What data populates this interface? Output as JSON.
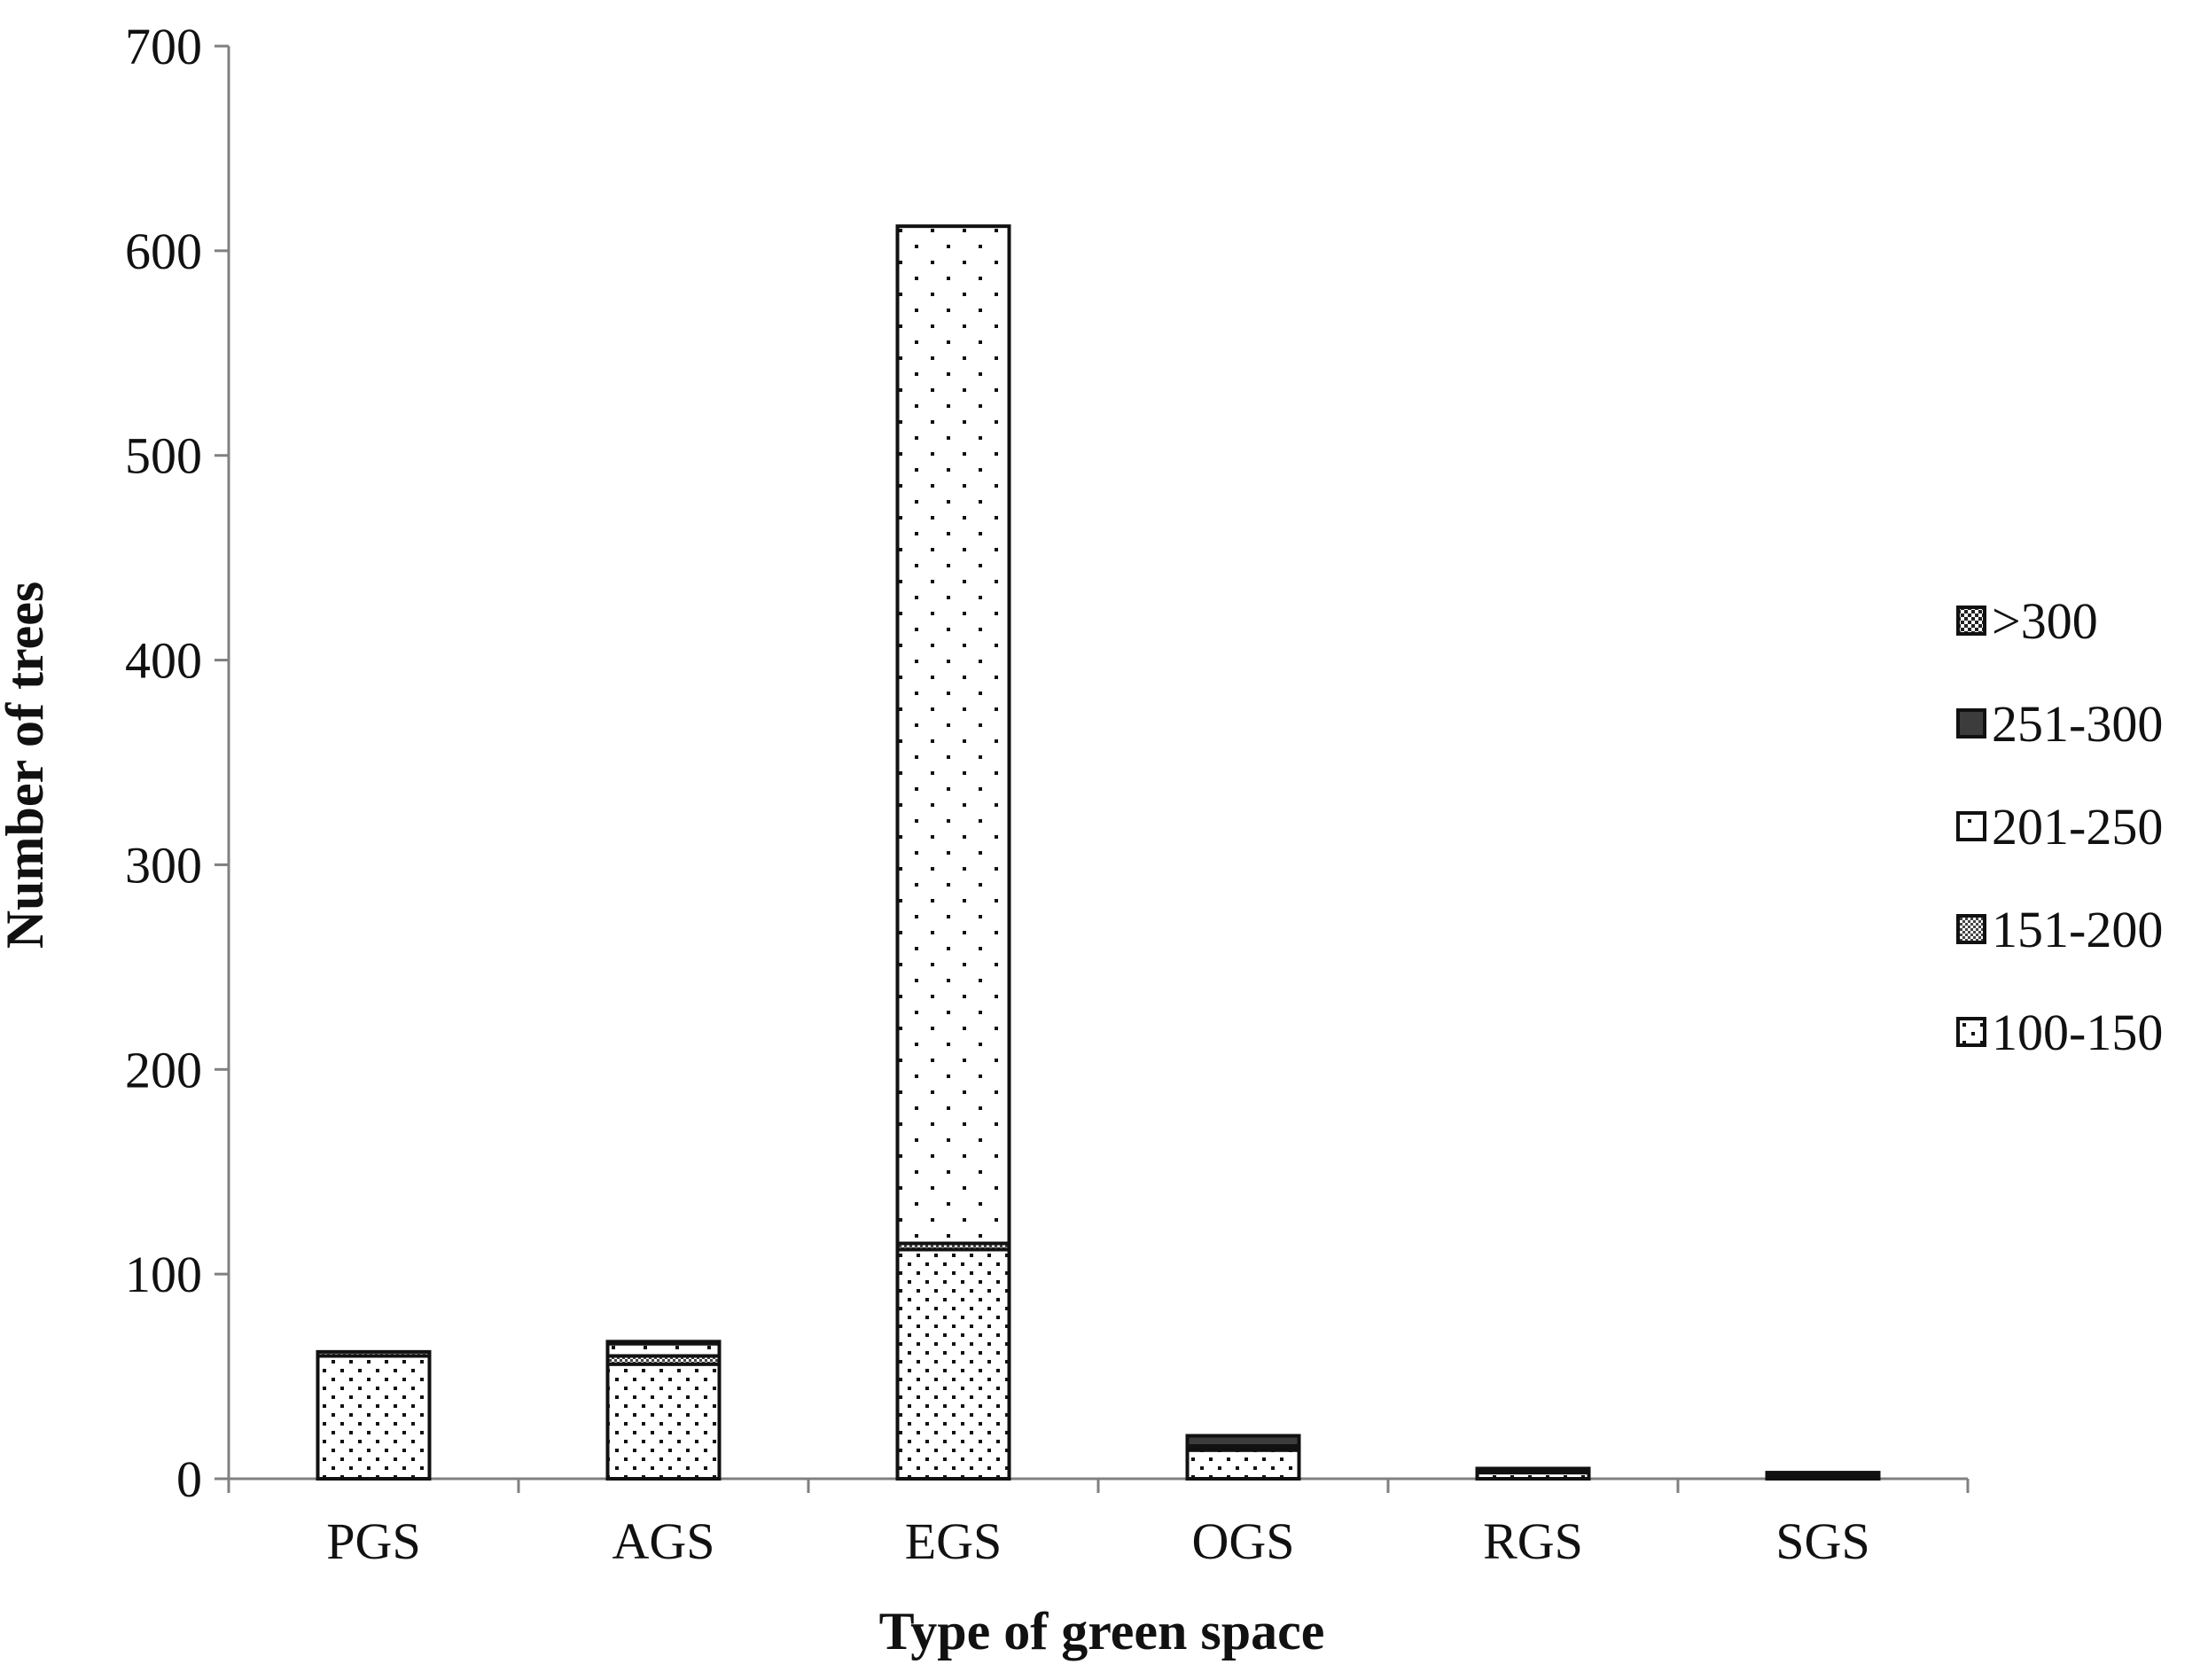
{
  "chart_data": {
    "type": "bar",
    "stacked": true,
    "title": "",
    "xlabel": "Type of green space",
    "ylabel": "Number of trees",
    "ylim": [
      0,
      700
    ],
    "yticks": [
      0,
      100,
      200,
      300,
      400,
      500,
      600,
      700
    ],
    "categories": [
      "PGS",
      "AGS",
      "EGS",
      "OGS",
      "RGS",
      "SGS"
    ],
    "series": [
      {
        "name": "100-150",
        "pattern": "pattern-100-150",
        "values": [
          60,
          56,
          112,
          14,
          3,
          1
        ]
      },
      {
        "name": "151-200",
        "pattern": "pattern-151-200",
        "values": [
          2,
          4,
          3,
          1,
          1,
          0
        ]
      },
      {
        "name": "201-250",
        "pattern": "pattern-201-250",
        "values": [
          0,
          6,
          497,
          1,
          1,
          1
        ]
      },
      {
        "name": "251-300",
        "pattern": "pattern-251-300",
        "values": [
          0,
          1,
          0,
          5,
          0,
          1
        ]
      },
      {
        "name": ">300",
        "pattern": "pattern-over-300",
        "values": [
          0,
          0,
          0,
          0,
          0,
          0
        ]
      }
    ],
    "legend_order": [
      ">300",
      "251-300",
      "201-250",
      "151-200",
      "100-150"
    ],
    "legend_position": "right",
    "grid": false,
    "colors": {
      "ink": "#111111",
      "axis": "#808080",
      "solid_fill": "#3c3c3c",
      "background": "#ffffff"
    }
  }
}
